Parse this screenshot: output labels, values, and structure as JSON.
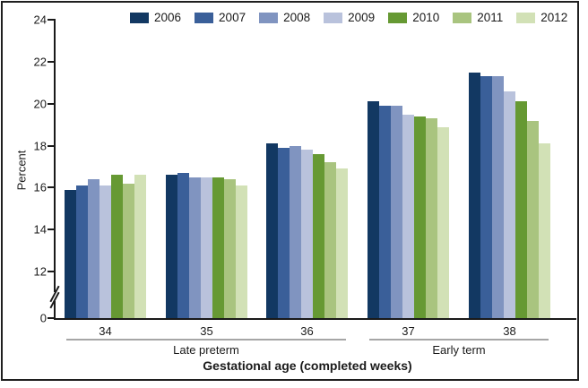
{
  "figure": {
    "y_axis_label": "Percent",
    "x_axis_label": "Gestational age (completed weeks)"
  },
  "chart_data": {
    "type": "bar",
    "title": "",
    "ylabel": "Percent",
    "xlabel": "Gestational age (completed weeks)",
    "categories": [
      "34",
      "35",
      "36",
      "37",
      "38"
    ],
    "category_axis_groups": [
      {
        "label": "Late preterm",
        "from": "34",
        "to": "36"
      },
      {
        "label": "Early term",
        "from": "37",
        "to": "38"
      }
    ],
    "y_ticks": [
      0,
      12,
      14,
      16,
      18,
      20,
      22,
      24
    ],
    "y_axis_break_between": [
      0,
      12
    ],
    "ylim_display": [
      12,
      24
    ],
    "grid": false,
    "legend_position": "top",
    "series": [
      {
        "name": "2006",
        "color": "#123862",
        "values": [
          15.9,
          16.6,
          18.1,
          20.1,
          21.5
        ]
      },
      {
        "name": "2007",
        "color": "#3a5f99",
        "values": [
          16.1,
          16.7,
          17.9,
          19.9,
          21.3
        ]
      },
      {
        "name": "2008",
        "color": "#8094c0",
        "values": [
          16.4,
          16.5,
          18.0,
          19.9,
          21.3
        ]
      },
      {
        "name": "2009",
        "color": "#b9c2dc",
        "values": [
          16.1,
          16.5,
          17.8,
          19.5,
          20.6
        ]
      },
      {
        "name": "2010",
        "color": "#669933",
        "values": [
          16.6,
          16.5,
          17.6,
          19.4,
          20.1
        ]
      },
      {
        "name": "2011",
        "color": "#a9c47f",
        "values": [
          16.2,
          16.4,
          17.2,
          19.3,
          19.2
        ]
      },
      {
        "name": "2012",
        "color": "#d2e1b6",
        "values": [
          16.6,
          16.1,
          16.9,
          18.9,
          18.1
        ]
      }
    ]
  }
}
